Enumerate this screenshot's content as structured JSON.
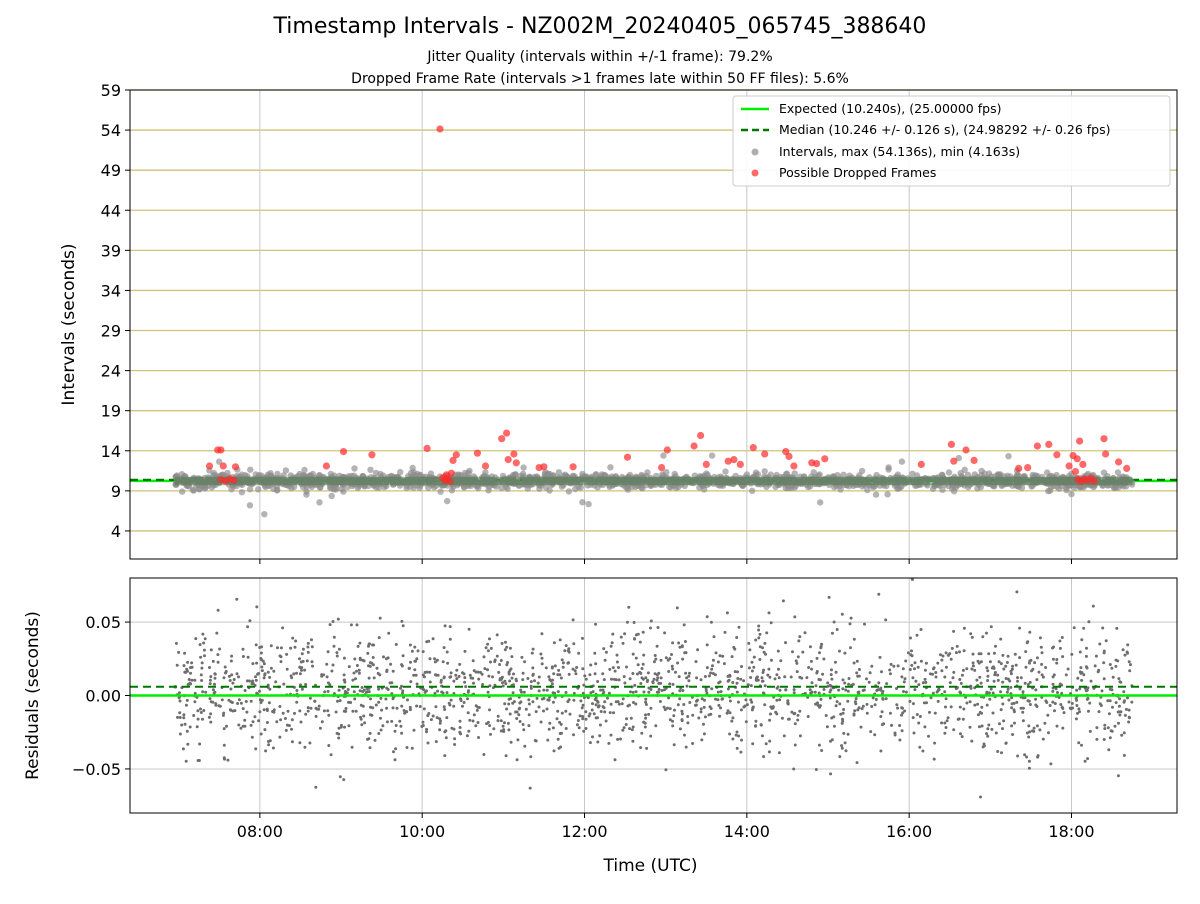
{
  "title": "Timestamp Intervals - NZ002M_20240405_065745_388640",
  "subtitle_lines": [
    "Jitter Quality (intervals within +/-1 frame): 79.2%",
    "Dropped Frame Rate (intervals >1 frames late within 50 FF files): 5.6%"
  ],
  "colors": {
    "expected": "#00ee00",
    "median": "#007700",
    "intervals": "#8c8c8c",
    "dropped": "#ff2a2a",
    "hgrid_top": "#d2c27a",
    "grid": "#c8c8c8",
    "residual_points": "#6e6e6e"
  },
  "chart_data": [
    {
      "type": "scatter",
      "panel": "intervals",
      "ylabel": "Intervals (seconds)",
      "ylim": [
        0.5,
        59
      ],
      "yticks": [
        4,
        9,
        14,
        19,
        24,
        29,
        34,
        39,
        44,
        49,
        54,
        59
      ],
      "xlim_hours": [
        6.4,
        19.3
      ],
      "xticks_hours": [
        8,
        10,
        12,
        14,
        16,
        18
      ],
      "grid": true,
      "legend_position": "top-right",
      "series": [
        {
          "name": "Expected (10.240s), (25.00000 fps)",
          "kind": "hline",
          "y": 10.24
        },
        {
          "name": "Median (10.246 +/- 0.126 s), (24.98292 +/- 0.26 fps)",
          "kind": "hline-dashed",
          "y": 10.246
        },
        {
          "name": "Intervals, max (54.136s), min (4.163s)",
          "kind": "scatter",
          "y_center": 10.24,
          "points_approx": 1800
        },
        {
          "name": "Possible Dropped Frames",
          "kind": "scatter",
          "points": [
            [
              7.38,
              12.1
            ],
            [
              7.55,
              12.1
            ],
            [
              7.48,
              14.1
            ],
            [
              7.52,
              14.1
            ],
            [
              7.7,
              12.0
            ],
            [
              7.52,
              10.4
            ],
            [
              7.58,
              10.2
            ],
            [
              7.63,
              10.5
            ],
            [
              7.68,
              10.3
            ],
            [
              8.82,
              12.1
            ],
            [
              9.03,
              13.9
            ],
            [
              9.38,
              13.5
            ],
            [
              10.06,
              14.3
            ],
            [
              10.22,
              54.14
            ],
            [
              10.25,
              10.6
            ],
            [
              10.28,
              10.3
            ],
            [
              10.31,
              10.5
            ],
            [
              10.34,
              10.2
            ],
            [
              10.36,
              11.2
            ],
            [
              10.3,
              11.0
            ],
            [
              10.38,
              12.8
            ],
            [
              10.42,
              13.5
            ],
            [
              10.68,
              13.7
            ],
            [
              10.78,
              12.1
            ],
            [
              10.98,
              15.5
            ],
            [
              11.04,
              16.2
            ],
            [
              11.06,
              12.9
            ],
            [
              11.13,
              13.6
            ],
            [
              11.16,
              12.5
            ],
            [
              11.44,
              11.9
            ],
            [
              11.5,
              12.0
            ],
            [
              11.86,
              12.0
            ],
            [
              12.53,
              13.2
            ],
            [
              12.95,
              11.9
            ],
            [
              13.02,
              14.1
            ],
            [
              13.35,
              14.6
            ],
            [
              13.43,
              15.9
            ],
            [
              13.5,
              12.3
            ],
            [
              13.77,
              12.7
            ],
            [
              13.84,
              12.9
            ],
            [
              13.92,
              12.3
            ],
            [
              14.08,
              14.4
            ],
            [
              14.22,
              13.6
            ],
            [
              14.48,
              13.9
            ],
            [
              14.52,
              13.3
            ],
            [
              14.58,
              12.1
            ],
            [
              14.8,
              12.5
            ],
            [
              14.86,
              12.4
            ],
            [
              14.96,
              13.0
            ],
            [
              16.15,
              12.3
            ],
            [
              16.52,
              14.8
            ],
            [
              16.55,
              12.7
            ],
            [
              16.7,
              14.1
            ],
            [
              16.8,
              12.8
            ],
            [
              17.35,
              11.8
            ],
            [
              17.46,
              11.9
            ],
            [
              17.58,
              14.6
            ],
            [
              17.72,
              14.8
            ],
            [
              17.82,
              13.5
            ],
            [
              17.97,
              12.1
            ],
            [
              18.02,
              13.4
            ],
            [
              18.07,
              13.0
            ],
            [
              18.1,
              15.2
            ],
            [
              18.14,
              12.3
            ],
            [
              18.05,
              11.4
            ],
            [
              18.08,
              10.4
            ],
            [
              18.12,
              10.2
            ],
            [
              18.16,
              10.5
            ],
            [
              18.2,
              10.3
            ],
            [
              18.24,
              10.6
            ],
            [
              18.28,
              10.2
            ],
            [
              18.4,
              15.5
            ],
            [
              18.42,
              13.6
            ],
            [
              18.58,
              12.6
            ],
            [
              18.68,
              11.8
            ]
          ]
        }
      ]
    },
    {
      "type": "scatter",
      "panel": "residuals",
      "xlabel": "Time (UTC)",
      "ylabel": "Residuals (seconds)",
      "ylim": [
        -0.08,
        0.08
      ],
      "yticks": [
        0.05,
        0.0,
        -0.05
      ],
      "ytick_labels": [
        "0.05",
        "0.00",
        "−0.05"
      ],
      "xtick_labels": [
        "08:00",
        "10:00",
        "12:00",
        "14:00",
        "16:00",
        "18:00"
      ],
      "grid": true,
      "series": [
        {
          "kind": "hline",
          "y": 0.0
        },
        {
          "kind": "hline-dashed",
          "y": 0.006
        },
        {
          "kind": "scatter",
          "y_center": 0.004,
          "points_approx": 2000
        }
      ]
    }
  ]
}
